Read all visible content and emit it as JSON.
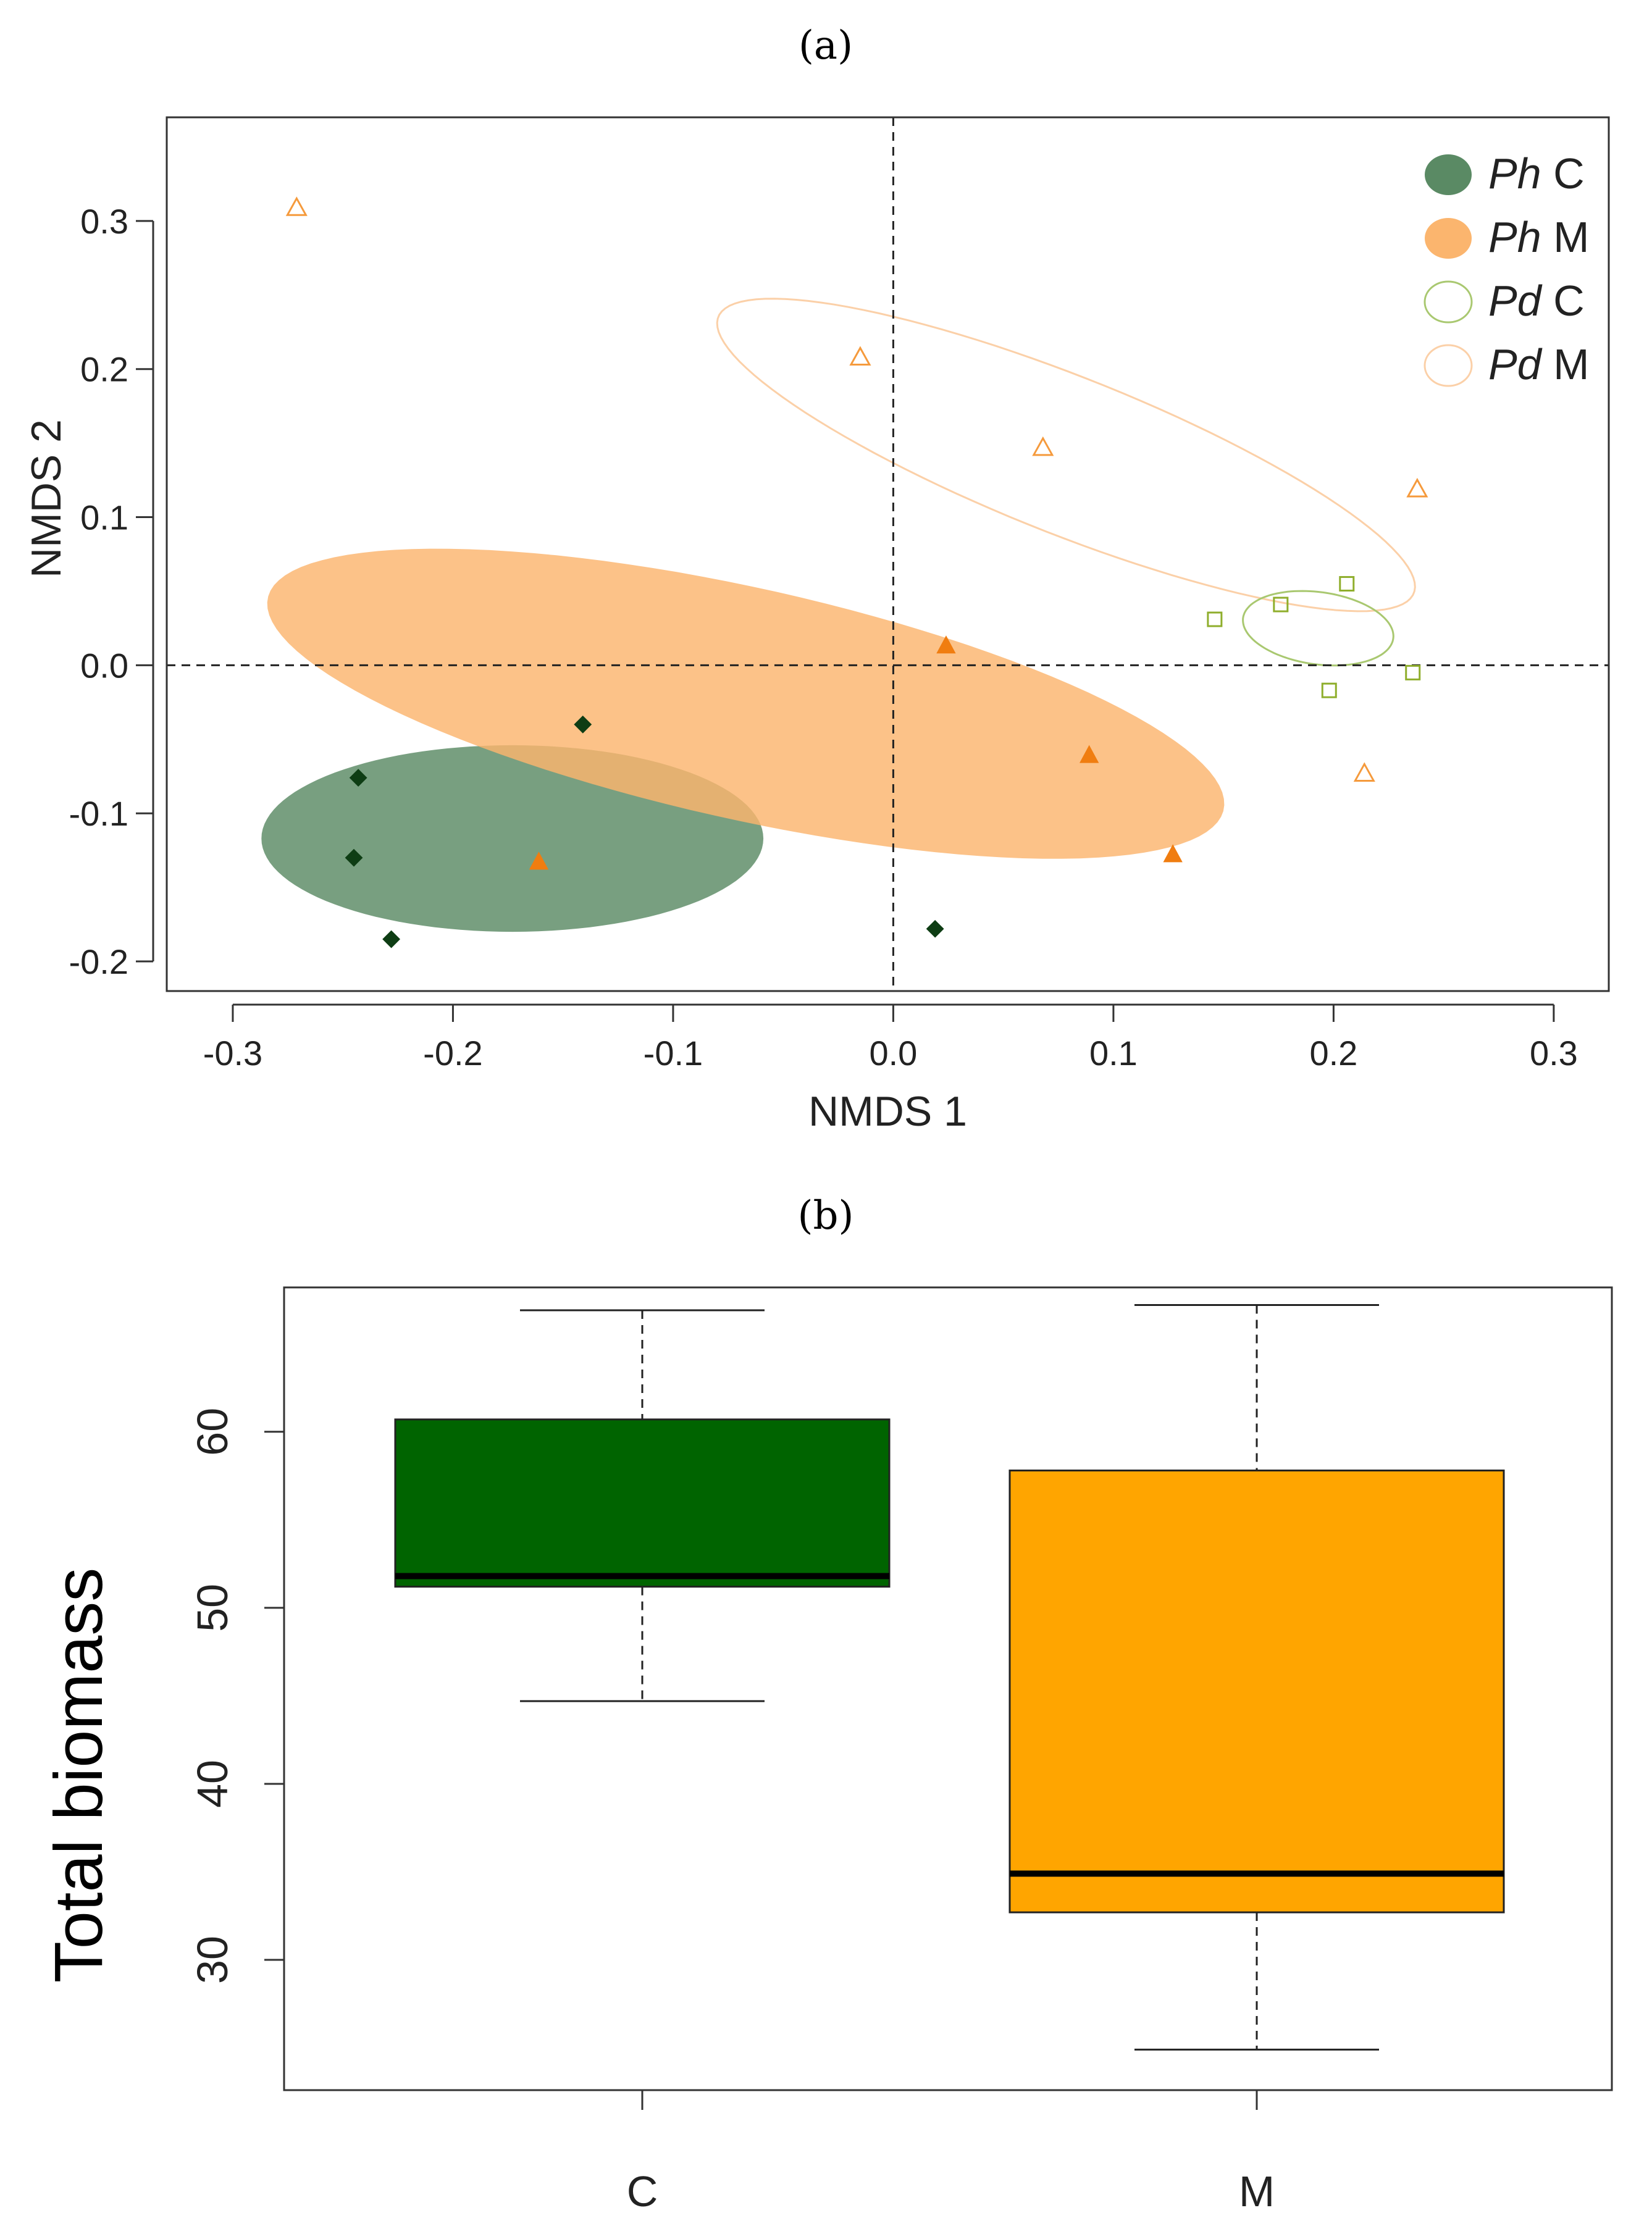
{
  "panel_labels": {
    "a": "(a)",
    "b": "(b)"
  },
  "colors": {
    "ph_c_fill": "#5a8a64",
    "ph_m_fill": "#fbb56e",
    "pd_c_line": "#a9c870",
    "pd_m_line": "#fbd0a8",
    "ph_c_point": "#0e3d14",
    "ph_m_point": "#f07d10",
    "pd_c_point": "#8fae2c",
    "pd_m_point": "#f59a3c",
    "box_c": "#006400",
    "box_m": "#ffa500"
  },
  "chart_data": [
    {
      "type": "scatter",
      "title": "",
      "xlabel": "NMDS 1",
      "ylabel": "NMDS 2",
      "xlim": [
        -0.33,
        0.325
      ],
      "ylim": [
        -0.22,
        0.37
      ],
      "xticks": [
        -0.3,
        -0.2,
        -0.1,
        0.0,
        0.1,
        0.2,
        0.3
      ],
      "yticks": [
        -0.2,
        -0.1,
        0.0,
        0.1,
        0.2,
        0.3
      ],
      "xtick_labels": [
        "-0.3",
        "-0.2",
        "-0.1",
        "0.0",
        "0.1",
        "0.2",
        "0.3"
      ],
      "ytick_labels": [
        "-0.2",
        "-0.1",
        "0.0",
        "0.1",
        "0.2",
        "0.3"
      ],
      "reference_lines": {
        "x": 0,
        "y": 0,
        "style": "dashed"
      },
      "legend": {
        "placement": "top-right",
        "entries": [
          {
            "italic": "Ph",
            "rest": " C",
            "style": "filled",
            "color_key": "ph_c_fill"
          },
          {
            "italic": "Ph",
            "rest": " M",
            "style": "filled",
            "color_key": "ph_m_fill"
          },
          {
            "italic": "Pd",
            "rest": " C",
            "style": "open",
            "color_key": "pd_c_line"
          },
          {
            "italic": "Pd",
            "rest": " M",
            "style": "open",
            "color_key": "pd_m_line"
          }
        ]
      },
      "ellipses": [
        {
          "group": "Ph C",
          "cx": -0.173,
          "cy": -0.117,
          "rx": 0.114,
          "ry": 0.063,
          "angle": 0,
          "style": "filled",
          "color_key": "ph_c_fill"
        },
        {
          "group": "Ph M",
          "cx": -0.067,
          "cy": -0.026,
          "rx": 0.229,
          "ry": 0.076,
          "angle": -0.34,
          "style": "filled",
          "color_key": "ph_m_fill"
        },
        {
          "group": "Pd M",
          "cx": 0.0785,
          "cy": 0.142,
          "rx": 0.184,
          "ry": 0.049,
          "angle": -0.555,
          "style": "open",
          "color_key": "pd_m_line"
        },
        {
          "group": "Pd C",
          "cx": 0.193,
          "cy": 0.025,
          "rx": 0.035,
          "ry": 0.024,
          "angle": -0.3,
          "style": "open",
          "color_key": "pd_c_line"
        }
      ],
      "series": [
        {
          "group": "Ph C",
          "marker": "diamond-filled",
          "color_key": "ph_c_point",
          "points": [
            [
              -0.243,
              -0.076
            ],
            [
              -0.245,
              -0.13
            ],
            [
              -0.228,
              -0.185
            ],
            [
              -0.141,
              -0.04
            ],
            [
              0.019,
              -0.178
            ]
          ]
        },
        {
          "group": "Ph M",
          "marker": "triangle-filled",
          "color_key": "ph_m_point",
          "points": [
            [
              0.024,
              0.013
            ],
            [
              0.089,
              -0.061
            ],
            [
              0.127,
              -0.128
            ],
            [
              -0.161,
              -0.133
            ]
          ]
        },
        {
          "group": "Pd C",
          "marker": "square-open",
          "color_key": "pd_c_point",
          "points": [
            [
              0.146,
              0.031
            ],
            [
              0.176,
              0.041
            ],
            [
              0.206,
              0.055
            ],
            [
              0.198,
              -0.017
            ],
            [
              0.236,
              -0.005
            ]
          ]
        },
        {
          "group": "Pd M",
          "marker": "triangle-open",
          "color_key": "pd_m_point",
          "points": [
            [
              -0.271,
              0.309
            ],
            [
              -0.015,
              0.208
            ],
            [
              0.068,
              0.147
            ],
            [
              0.238,
              0.119
            ],
            [
              0.214,
              -0.073
            ]
          ]
        }
      ]
    },
    {
      "type": "boxplot",
      "title": "",
      "xlabel": "",
      "ylabel": "Total biomass",
      "ylim": [
        22.6,
        68.2
      ],
      "yticks": [
        30,
        40,
        50,
        60
      ],
      "ytick_labels": [
        "30",
        "40",
        "50",
        "60"
      ],
      "categories": [
        "C",
        "M"
      ],
      "boxes": [
        {
          "name": "C",
          "min": 44.7,
          "q1": 51.2,
          "median": 51.8,
          "q3": 60.7,
          "max": 66.9,
          "color_key": "box_c"
        },
        {
          "name": "M",
          "min": 24.9,
          "q1": 32.7,
          "median": 34.9,
          "q3": 57.8,
          "max": 67.2,
          "color_key": "box_m"
        }
      ]
    }
  ]
}
